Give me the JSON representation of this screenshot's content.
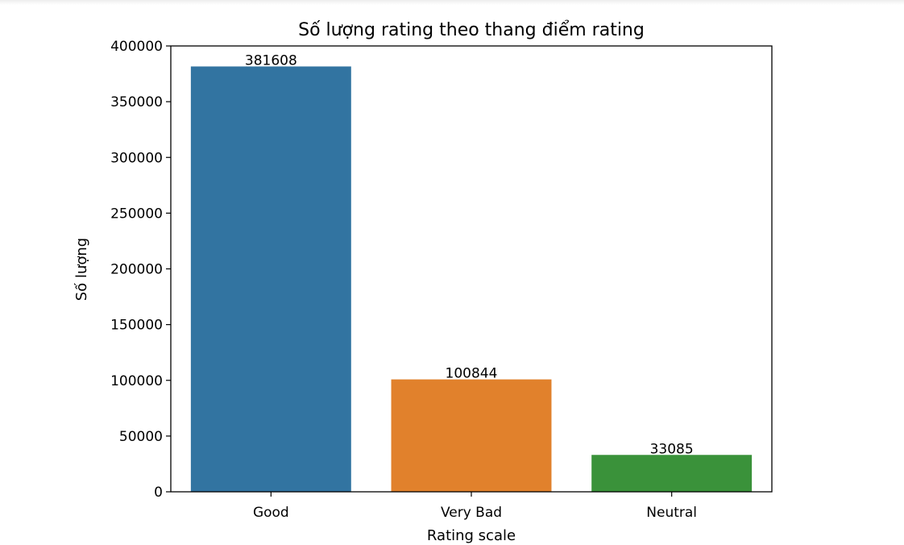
{
  "chart_data": {
    "type": "bar",
    "title": "Số lượng rating theo thang điểm rating",
    "xlabel": "Rating scale",
    "ylabel": "Số lượng",
    "categories": [
      "Good",
      "Very Bad",
      "Neutral"
    ],
    "values": [
      381608,
      100844,
      33085
    ],
    "data_labels": [
      "381608",
      "100844",
      "33085"
    ],
    "colors": [
      "#3274a1",
      "#e1812c",
      "#3a923a"
    ],
    "ylim": [
      0,
      400000
    ],
    "yticks": [
      0,
      50000,
      100000,
      150000,
      200000,
      250000,
      300000,
      350000,
      400000
    ],
    "ytick_labels": [
      "0",
      "50000",
      "100000",
      "150000",
      "200000",
      "250000",
      "300000",
      "350000",
      "400000"
    ],
    "grid": false,
    "legend": "none"
  }
}
